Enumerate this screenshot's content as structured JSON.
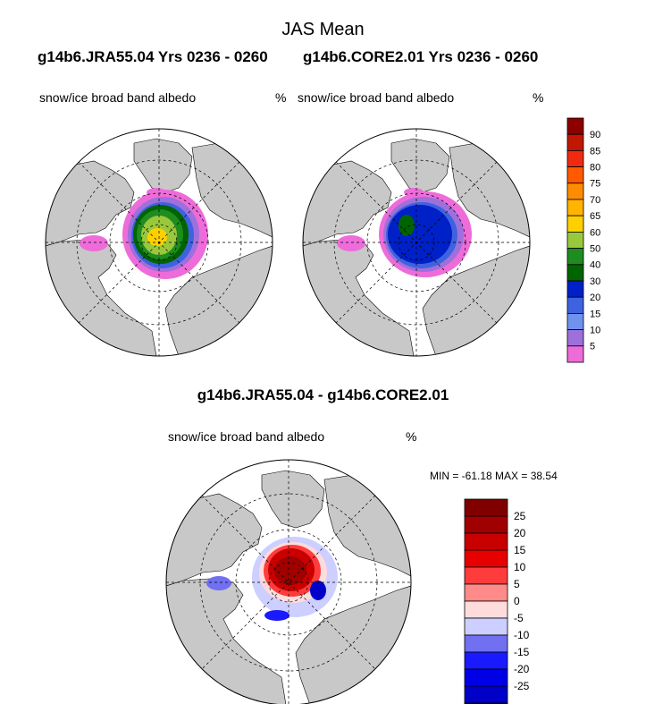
{
  "title": "JAS Mean",
  "case_a_header": "g14b6.JRA55.04  Yrs 0236 - 0260",
  "case_b_header": "g14b6.CORE2.01  Yrs 0236 - 0260",
  "diff_header": "g14b6.JRA55.04 - g14b6.CORE2.01",
  "panel_a": {
    "variable": "snow/ice broad band albedo",
    "units": "%"
  },
  "panel_b": {
    "variable": "snow/ice broad band albedo",
    "units": "%"
  },
  "panel_diff": {
    "variable": "snow/ice broad band albedo",
    "units": "%",
    "minmax": "MIN = -61.18 MAX =  38.54"
  },
  "colors": {
    "land": "#c8c8c8",
    "ocean": "#ffffff"
  },
  "chart_data": [
    {
      "type": "heatmap",
      "projection": "north-polar-stereographic",
      "title": "snow/ice broad band albedo (g14b6.JRA55.04)",
      "units": "%",
      "levels": [
        5,
        10,
        15,
        20,
        30,
        40,
        50,
        60,
        65,
        70,
        75,
        80,
        85,
        90
      ],
      "level_labels": [
        "5",
        "10",
        "15",
        "20",
        "30",
        "40",
        "50",
        "60",
        "65",
        "70",
        "75",
        "80",
        "85",
        "90"
      ],
      "colors": [
        "#ee6cd9",
        "#9e70dc",
        "#6e92ed",
        "#3e62e0",
        "#0020c8",
        "#006400",
        "#1e8c1e",
        "#9ac83c",
        "#ffd000",
        "#ffb400",
        "#ff8c00",
        "#ff5a00",
        "#f02a10",
        "#c01800",
        "#8c0000"
      ]
    },
    {
      "type": "heatmap",
      "projection": "north-polar-stereographic",
      "title": "snow/ice broad band albedo (g14b6.CORE2.01)",
      "units": "%",
      "levels": [
        5,
        10,
        15,
        20,
        30,
        40,
        50,
        60,
        65,
        70,
        75,
        80,
        85,
        90
      ]
    },
    {
      "type": "heatmap",
      "projection": "north-polar-stereographic",
      "title": "snow/ice broad band albedo difference",
      "units": "%",
      "min": -61.18,
      "max": 38.54,
      "levels": [
        -25,
        -20,
        -15,
        -10,
        -5,
        0,
        5,
        10,
        15,
        20,
        25
      ],
      "level_labels": [
        "-25",
        "-20",
        "-15",
        "-10",
        "-5",
        "0",
        "5",
        "10",
        "15",
        "20",
        "25"
      ],
      "colors": [
        "#000080",
        "#0000a0",
        "#0000c8",
        "#0000e6",
        "#1a1aff",
        "#7070f0",
        "#cccfff",
        "#ffdcdc",
        "#ff8a8a",
        "#ff3c3c",
        "#e60000",
        "#c80000",
        "#a00000",
        "#800000"
      ]
    }
  ]
}
